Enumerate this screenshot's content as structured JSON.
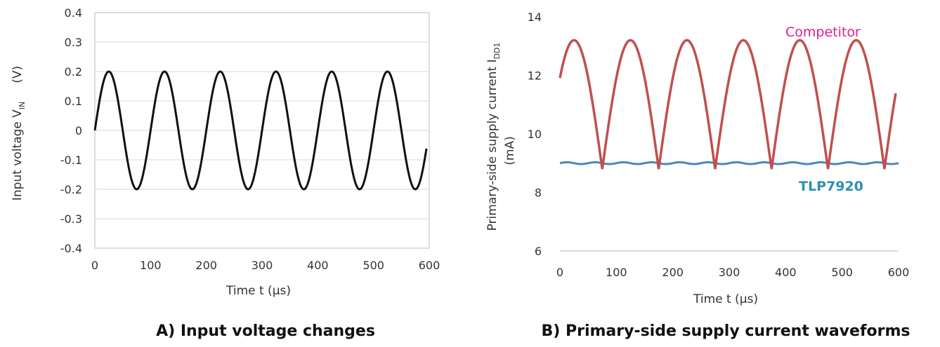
{
  "chart_data": [
    {
      "type": "line",
      "caption": "A) Input voltage changes",
      "xlabel": "Time  t  (μs)",
      "ylabel_main": "Input voltage  V",
      "ylabel_sub": "IN",
      "ylabel_unit": "(V)",
      "xlim": [
        0,
        600
      ],
      "ylim": [
        -0.4,
        0.4
      ],
      "xticks": [
        "0",
        "100",
        "200",
        "300",
        "400",
        "500",
        "600"
      ],
      "yticks": [
        "-0.4",
        "-0.3",
        "-0.2",
        "-0.1",
        "0",
        "0.1",
        "0.2",
        "0.3",
        "0.4"
      ],
      "grid": true,
      "series": [
        {
          "color": "#111111",
          "waveform": "sine",
          "amplitude": 0.2,
          "offset": 0,
          "period_us": 100,
          "x_range": [
            0,
            595
          ]
        }
      ]
    },
    {
      "type": "line",
      "caption": "B) Primary-side supply current waveforms",
      "xlabel": "Time  t  (μs)",
      "ylabel_main": "Primary-side supply current  I",
      "ylabel_sub": "DD1",
      "ylabel_unit": "(mA)",
      "xlim": [
        0,
        600
      ],
      "ylim": [
        6,
        14
      ],
      "xticks": [
        "0",
        "100",
        "200",
        "300",
        "400",
        "500",
        "600"
      ],
      "yticks": [
        "6",
        "8",
        "10",
        "12",
        "14"
      ],
      "grid": false,
      "series": [
        {
          "name": "Competitor",
          "color": "#c0504d",
          "label_color": "#e0208a",
          "waveform": "rectified-sine",
          "min": 8.8,
          "max": 13.2,
          "period_us": 100,
          "phase_us": -25,
          "x_range": [
            0,
            595
          ]
        },
        {
          "name": "TLP7920",
          "color": "#4a86c5",
          "label_color": "#2e8fb0",
          "waveform": "constant",
          "value": 9.0,
          "ripple": 0.03,
          "x_range": [
            0,
            600
          ]
        }
      ]
    }
  ]
}
